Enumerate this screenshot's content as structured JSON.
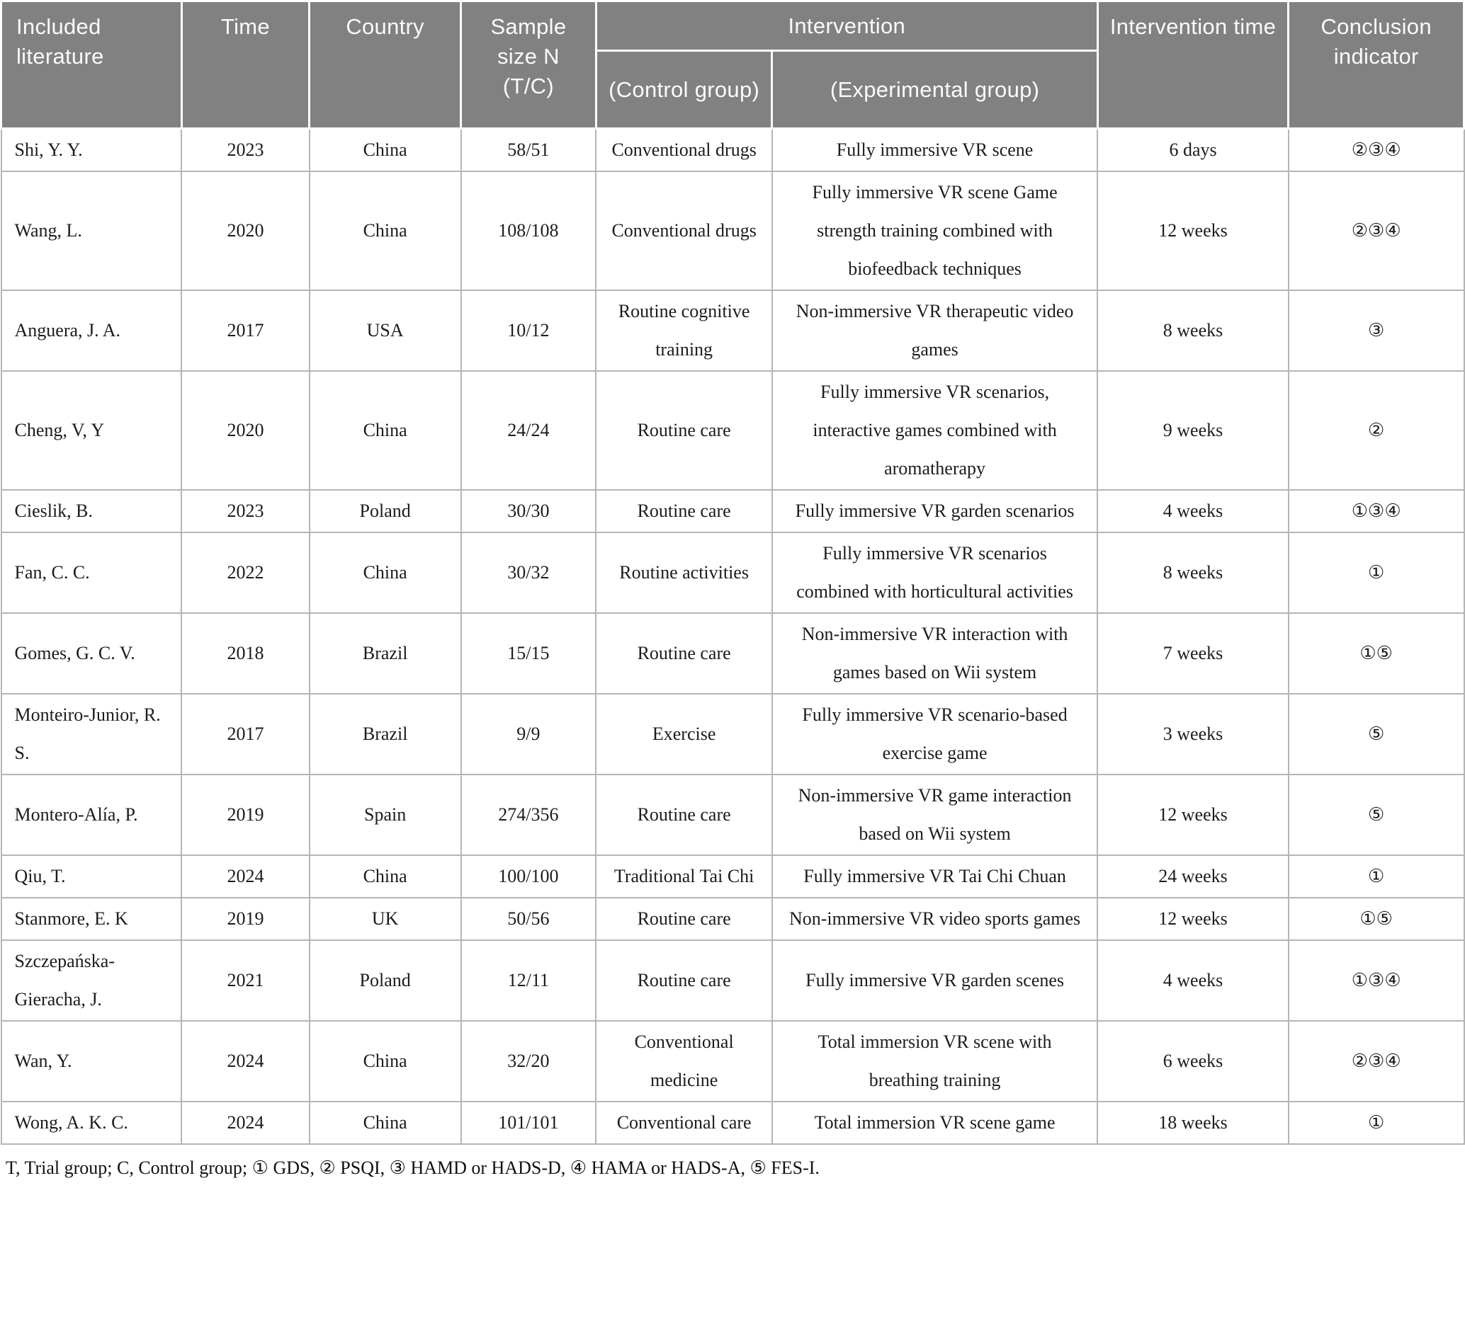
{
  "colors": {
    "header_background": "#818181",
    "header_text": "#fafafa",
    "grid_line": "#b5b5b5",
    "body_text": "#1c1c1c",
    "page_background": "#ffffff"
  },
  "table": {
    "columns": [
      "literature",
      "time",
      "country",
      "sample_size",
      "control_group",
      "experimental_group",
      "intervention_time",
      "conclusion_indicator"
    ],
    "header": {
      "included_literature": "Included literature",
      "time": "Time",
      "country": "Country",
      "sample_size": "Sample size N (T/C)",
      "intervention": "Intervention",
      "control_group": "(Control group)",
      "experimental_group": "(Experimental group)",
      "intervention_time": "Intervention time",
      "conclusion_indicator": "Conclusion indicator"
    },
    "rows": [
      {
        "literature": "Shi, Y. Y.",
        "time": "2023",
        "country": "China",
        "sample_size": "58/51",
        "control_group": "Conventional drugs",
        "experimental_group": "Fully immersive VR scene",
        "intervention_time": "6 days",
        "conclusion_indicator": "②③④"
      },
      {
        "literature": "Wang, L.",
        "time": "2020",
        "country": "China",
        "sample_size": "108/108",
        "control_group": "Conventional drugs",
        "experimental_group": "Fully immersive VR scene Game strength training combined with biofeedback techniques",
        "intervention_time": "12 weeks",
        "conclusion_indicator": "②③④"
      },
      {
        "literature": "Anguera, J. A.",
        "time": "2017",
        "country": "USA",
        "sample_size": "10/12",
        "control_group": "Routine cognitive training",
        "experimental_group": "Non-immersive VR therapeutic video games",
        "intervention_time": "8 weeks",
        "conclusion_indicator": "③"
      },
      {
        "literature": "Cheng, V, Y",
        "time": "2020",
        "country": "China",
        "sample_size": "24/24",
        "control_group": "Routine care",
        "experimental_group": "Fully immersive VR scenarios, interactive games combined with aromatherapy",
        "intervention_time": "9 weeks",
        "conclusion_indicator": "②"
      },
      {
        "literature": "Cieslik, B.",
        "time": "2023",
        "country": "Poland",
        "sample_size": "30/30",
        "control_group": "Routine care",
        "experimental_group": "Fully immersive VR garden scenarios",
        "intervention_time": "4 weeks",
        "conclusion_indicator": "①③④"
      },
      {
        "literature": "Fan, C. C.",
        "time": "2022",
        "country": "China",
        "sample_size": "30/32",
        "control_group": "Routine activities",
        "experimental_group": "Fully immersive VR scenarios combined with horticultural activities",
        "intervention_time": "8 weeks",
        "conclusion_indicator": "①"
      },
      {
        "literature": "Gomes, G. C. V.",
        "time": "2018",
        "country": "Brazil",
        "sample_size": "15/15",
        "control_group": "Routine care",
        "experimental_group": "Non-immersive VR interaction with games based on Wii system",
        "intervention_time": "7 weeks",
        "conclusion_indicator": "①⑤"
      },
      {
        "literature": "Monteiro-Junior, R. S.",
        "time": "2017",
        "country": "Brazil",
        "sample_size": "9/9",
        "control_group": "Exercise",
        "experimental_group": "Fully immersive VR scenario-based exercise game",
        "intervention_time": "3 weeks",
        "conclusion_indicator": "⑤"
      },
      {
        "literature": "Montero-Alía, P.",
        "time": "2019",
        "country": "Spain",
        "sample_size": "274/356",
        "control_group": "Routine care",
        "experimental_group": "Non-immersive VR game interaction based on Wii system",
        "intervention_time": "12 weeks",
        "conclusion_indicator": "⑤"
      },
      {
        "literature": "Qiu, T.",
        "time": "2024",
        "country": "China",
        "sample_size": "100/100",
        "control_group": "Traditional Tai Chi",
        "experimental_group": "Fully immersive VR Tai Chi Chuan",
        "intervention_time": "24 weeks",
        "conclusion_indicator": "①"
      },
      {
        "literature": "Stanmore, E. K",
        "time": "2019",
        "country": "UK",
        "sample_size": "50/56",
        "control_group": "Routine care",
        "experimental_group": "Non-immersive VR video sports games",
        "intervention_time": "12 weeks",
        "conclusion_indicator": "①⑤"
      },
      {
        "literature": "Szczepańska-Gieracha, J.",
        "time": "2021",
        "country": "Poland",
        "sample_size": "12/11",
        "control_group": "Routine care",
        "experimental_group": "Fully immersive VR garden scenes",
        "intervention_time": "4 weeks",
        "conclusion_indicator": "①③④"
      },
      {
        "literature": "Wan, Y.",
        "time": "2024",
        "country": "China",
        "sample_size": "32/20",
        "control_group": "Conventional medicine",
        "experimental_group": "Total immersion VR scene with breathing training",
        "intervention_time": "6 weeks",
        "conclusion_indicator": "②③④"
      },
      {
        "literature": "Wong, A. K. C.",
        "time": "2024",
        "country": "China",
        "sample_size": "101/101",
        "control_group": "Conventional care",
        "experimental_group": "Total immersion VR scene game",
        "intervention_time": "18 weeks",
        "conclusion_indicator": "①"
      }
    ]
  },
  "footnote": "T, Trial group; C, Control group; ① GDS, ② PSQI, ③ HAMD or HADS-D, ④ HAMA or HADS-A, ⑤ FES-I."
}
